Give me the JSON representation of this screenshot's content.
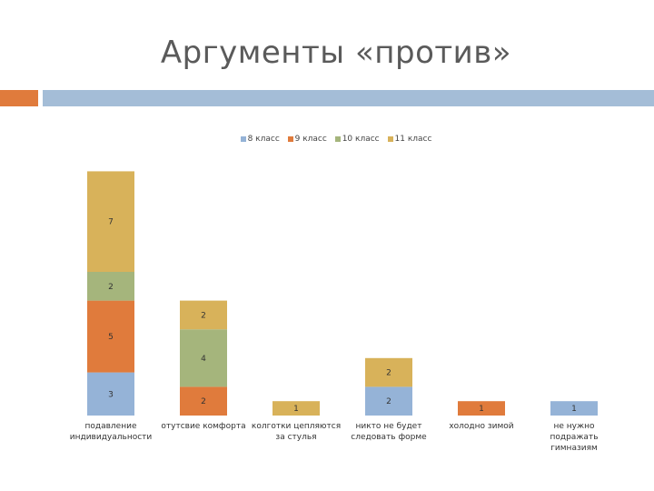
{
  "slide": {
    "title": "Аргументы «против»",
    "accent_colors": {
      "orange": "#e07b3c",
      "blue": "#a4bdd7"
    }
  },
  "chart_data": {
    "type": "bar",
    "stacked": true,
    "categories": [
      "подавление индивидуальности",
      "отутсвие комфорта",
      "колготки цепляются за стулья",
      "никто не будет следовать форме",
      "холодно зимой",
      "не нужно подражать гимназиям"
    ],
    "series": [
      {
        "name": "8 класс",
        "color": "#95b3d7",
        "values": [
          3,
          0,
          0,
          2,
          0,
          1
        ]
      },
      {
        "name": "9 класс",
        "color": "#e07b3c",
        "values": [
          5,
          2,
          0,
          0,
          1,
          0
        ]
      },
      {
        "name": "10 класс",
        "color": "#a5b57c",
        "values": [
          2,
          4,
          0,
          0,
          0,
          0
        ]
      },
      {
        "name": "11 класс",
        "color": "#d8b25a",
        "values": [
          7,
          2,
          1,
          2,
          0,
          0
        ]
      }
    ],
    "legend_position": "top",
    "grid": false
  }
}
